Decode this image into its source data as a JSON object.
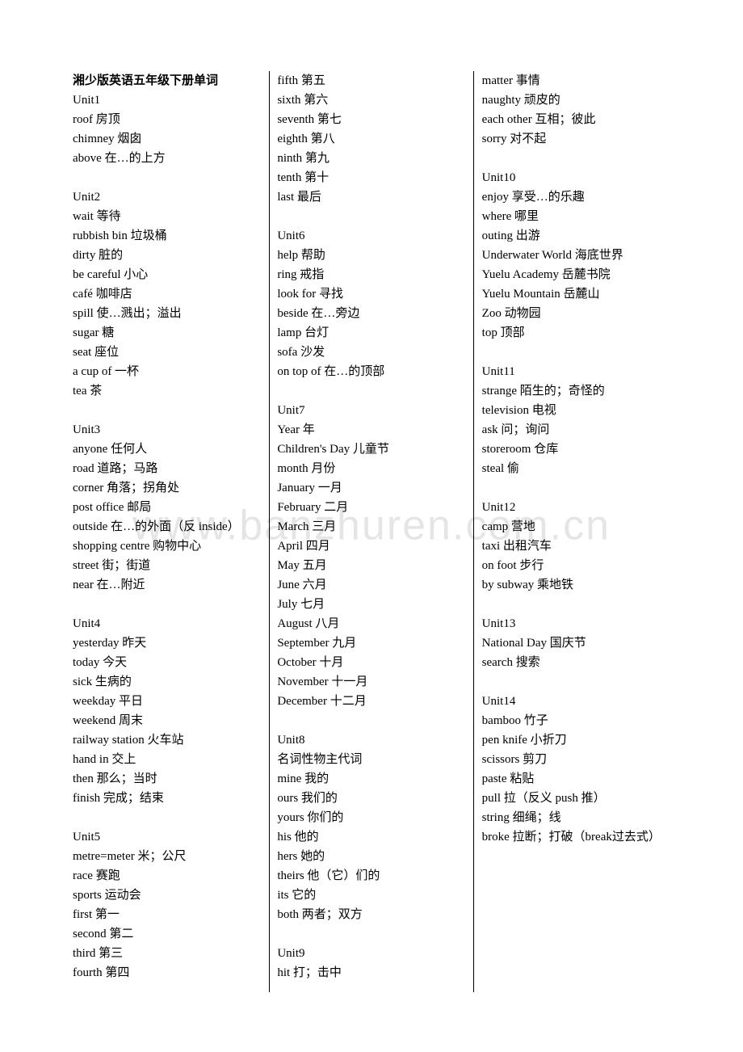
{
  "title": "湘少版英语五年级下册单词",
  "watermark": "www.banzhuren.com.cn",
  "units": [
    {
      "name": "Unit1",
      "entries": [
        "roof 房顶",
        "chimney 烟囱",
        "above 在…的上方"
      ]
    },
    {
      "name": "Unit2",
      "entries": [
        "wait 等待",
        "rubbish bin 垃圾桶",
        "dirty 脏的",
        "be careful  小心",
        "café 咖啡店",
        "spill 使…溅出；溢出",
        "sugar 糖",
        "seat 座位",
        "a cup of 一杯",
        "tea 茶"
      ]
    },
    {
      "name": "Unit3",
      "entries": [
        "anyone 任何人",
        "road 道路；马路",
        "corner 角落；拐角处",
        "post office 邮局",
        "outside 在…的外面（反 inside）",
        "shopping centre 购物中心",
        "street 街；街道",
        "near 在…附近"
      ]
    },
    {
      "name": "Unit4",
      "entries": [
        "yesterday 昨天",
        "today 今天",
        "sick 生病的",
        "weekday 平日",
        "weekend 周末",
        "railway station 火车站",
        "hand in 交上",
        "then 那么；当时",
        "finish 完成；结束"
      ]
    },
    {
      "name": "Unit5",
      "entries": [
        "metre=meter 米；公尺",
        "race 赛跑",
        "sports 运动会",
        "first 第一",
        "second 第二",
        "third 第三",
        "fourth 第四",
        "fifth 第五",
        "sixth 第六",
        "seventh 第七",
        "eighth 第八",
        "ninth 第九",
        "tenth 第十",
        "last 最后"
      ]
    },
    {
      "name": "Unit6",
      "entries": [
        "help 帮助",
        "ring 戒指",
        "look for 寻找",
        "beside 在…旁边",
        "lamp 台灯",
        "sofa 沙发",
        "on top of 在…的顶部"
      ]
    },
    {
      "name": "Unit7",
      "entries": [
        "Year 年",
        "Children's Day 儿童节",
        "month 月份",
        "January 一月",
        "February 二月",
        "March 三月",
        "April 四月",
        "May 五月",
        "June 六月",
        "July 七月",
        "August 八月",
        "September  九月",
        "October 十月",
        "November 十一月",
        "December 十二月"
      ]
    },
    {
      "name": "Unit8",
      "entries": [
        "名词性物主代词",
        "mine 我的",
        "ours 我们的",
        "yours 你们的",
        "his 他的",
        "hers 她的",
        "theirs 他（它）们的",
        "its  它的",
        "both 两者；双方"
      ]
    },
    {
      "name": "Unit9",
      "entries": [
        "hit 打；击中",
        "matter 事情",
        "naughty 顽皮的",
        "each other 互相；彼此",
        "sorry 对不起"
      ]
    },
    {
      "name": "Unit10",
      "entries": [
        "enjoy 享受…的乐趣",
        "where 哪里",
        "outing 出游",
        "Underwater World 海底世界",
        "Yuelu Academy 岳麓书院",
        "Yuelu Mountain 岳麓山",
        "Zoo 动物园",
        "top 顶部"
      ]
    },
    {
      "name": "Unit11",
      "entries": [
        "strange 陌生的；奇怪的",
        "television 电视",
        "ask 问；询问",
        "storeroom 仓库",
        "steal 偷"
      ]
    },
    {
      "name": "Unit12",
      "entries": [
        "camp 营地",
        "taxi 出租汽车",
        "on foot 步行",
        "by subway 乘地铁"
      ]
    },
    {
      "name": "Unit13",
      "entries": [
        "National Day 国庆节",
        "search 搜索"
      ]
    },
    {
      "name": "Unit14",
      "entries": [
        "bamboo 竹子",
        "pen knife 小折刀",
        "scissors 剪刀",
        "paste 粘贴",
        "pull 拉（反义 push 推）",
        "string 细绳；线",
        "broke 拉断；打破（break过去式）"
      ]
    }
  ]
}
